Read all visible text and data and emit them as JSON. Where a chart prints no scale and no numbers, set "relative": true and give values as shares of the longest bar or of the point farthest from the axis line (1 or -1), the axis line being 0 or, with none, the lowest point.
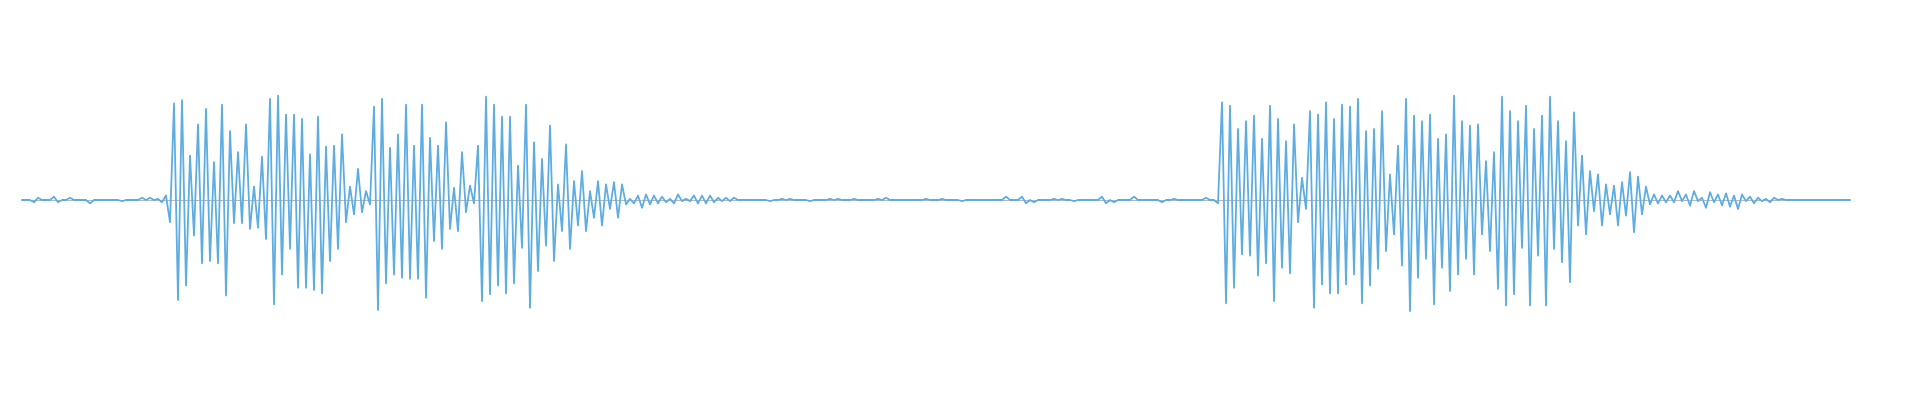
{
  "chart_data": {
    "type": "line",
    "relative": true,
    "marker": "none",
    "color": "#5dade2",
    "categories": [
      null,
      null,
      null,
      null,
      null,
      null,
      null,
      null,
      null,
      null,
      null,
      null,
      null,
      null,
      null,
      null,
      null,
      null,
      null,
      null,
      null,
      null,
      null,
      null,
      null,
      null,
      null,
      null,
      null,
      null,
      null,
      null,
      null,
      null,
      null,
      null,
      null,
      null,
      null,
      null,
      null,
      null,
      null,
      null,
      null,
      null,
      null,
      null,
      null,
      null,
      null,
      null,
      null,
      null,
      null,
      null,
      null,
      null,
      null,
      null,
      null,
      null,
      null,
      null,
      null,
      null,
      null,
      null,
      null,
      null,
      null,
      null,
      null,
      null,
      null,
      null,
      null,
      null,
      null,
      null,
      null,
      null,
      null,
      null,
      null,
      null,
      null,
      null,
      null,
      null,
      null,
      null,
      null,
      null,
      null,
      null,
      null,
      null,
      null,
      null,
      null,
      null,
      null,
      null,
      null,
      null,
      null,
      null,
      null,
      null,
      null,
      null,
      null,
      null,
      null,
      null,
      null,
      null,
      null,
      null,
      null,
      null,
      null,
      null,
      null,
      null,
      null,
      null,
      null,
      null,
      null,
      null,
      null,
      null,
      null,
      null,
      null,
      null,
      null,
      null,
      null,
      null,
      null,
      null,
      null,
      null,
      null,
      null,
      null,
      null,
      null,
      null,
      null,
      null,
      null,
      null,
      null,
      null,
      null,
      null,
      null,
      null,
      null,
      null,
      null,
      null,
      null,
      null,
      null,
      null,
      null,
      null,
      null,
      null,
      null,
      null,
      null,
      null,
      null,
      null,
      null,
      null,
      null,
      null,
      null,
      null,
      null,
      null,
      null,
      null,
      null,
      null,
      null,
      null,
      null,
      null,
      null,
      null,
      null,
      null,
      null,
      null,
      null,
      null,
      null,
      null,
      null,
      null,
      null,
      null,
      null,
      null,
      null,
      null,
      null,
      null,
      null,
      null,
      null,
      null,
      null,
      null,
      null,
      null,
      null,
      null,
      null,
      null,
      null,
      null,
      null,
      null,
      null,
      null,
      null,
      null,
      null,
      null,
      null,
      null,
      null,
      null,
      null,
      null,
      null,
      null,
      null,
      null,
      null,
      null,
      null,
      null,
      null,
      null,
      null,
      null,
      null,
      null,
      null,
      null,
      null,
      null,
      null,
      null,
      null,
      null,
      null,
      null,
      null,
      null,
      null,
      null,
      null,
      null,
      null,
      null,
      null,
      null,
      null,
      null,
      null,
      null,
      null,
      null,
      null,
      null,
      null,
      null,
      null,
      null,
      null,
      null,
      null,
      null,
      null,
      null,
      null,
      null,
      null,
      null,
      null,
      null,
      null,
      null,
      null,
      null,
      null,
      null,
      null,
      null,
      null,
      null,
      null,
      null,
      null,
      null,
      null,
      null,
      null,
      null,
      null,
      null,
      null,
      null,
      null,
      null,
      null,
      null,
      null,
      null,
      null,
      null,
      null,
      null,
      null,
      null,
      null,
      null,
      null,
      null,
      null,
      null,
      null,
      null,
      null,
      null,
      null,
      null,
      null,
      null,
      null,
      null,
      null,
      null,
      null,
      null,
      null,
      null,
      null,
      null,
      null,
      null,
      null,
      null,
      null,
      null,
      null,
      null,
      null,
      null,
      null,
      null,
      null,
      null,
      null,
      null,
      null,
      null,
      null,
      null,
      null,
      null,
      null,
      null,
      null,
      null,
      null,
      null,
      null,
      null,
      null,
      null,
      null,
      null,
      null,
      null,
      null,
      null,
      null,
      null,
      null,
      null,
      null,
      null,
      null,
      null,
      null,
      null,
      null,
      null,
      null,
      null,
      null,
      null,
      null,
      null,
      null,
      null,
      null,
      null,
      null,
      null,
      null,
      null,
      null,
      null,
      null,
      null,
      null,
      null,
      null,
      null,
      null,
      null,
      null,
      null,
      null,
      null,
      null,
      null,
      null,
      null,
      null,
      null,
      null,
      null,
      null,
      null,
      null,
      null,
      null,
      null,
      null,
      null,
      null,
      null,
      null,
      null
    ],
    "values": [
      0,
      0,
      0,
      -0.02,
      0.02,
      0,
      0,
      0,
      0.03,
      -0.02,
      0,
      0,
      0.02,
      0,
      0,
      0,
      0,
      -0.03,
      0,
      0,
      0,
      0,
      0,
      0,
      0,
      -0.01,
      0,
      0,
      0,
      0,
      0.02,
      0,
      0.02,
      0,
      0.01,
      -0.02,
      0.04,
      -0.2,
      0.87,
      -0.9,
      0.9,
      -0.77,
      0.4,
      -0.32,
      0.68,
      -0.57,
      0.82,
      -0.55,
      0.34,
      -0.57,
      0.86,
      -0.86,
      0.62,
      -0.21,
      0.43,
      -0.21,
      0.68,
      -0.26,
      0.12,
      -0.25,
      0.39,
      -0.35,
      0.91,
      -0.94,
      0.94,
      -0.67,
      0.77,
      -0.44,
      0.77,
      -0.79,
      0.73,
      -0.79,
      0.41,
      -0.81,
      0.75,
      -0.84,
      0.48,
      -0.55,
      0.49,
      -0.44,
      0.59,
      -0.2,
      0.12,
      -0.13,
      0.28,
      -0.11,
      0.08,
      -0.04,
      0.84,
      -0.99,
      0.91,
      -0.75,
      0.47,
      -0.67,
      0.59,
      -0.7,
      0.86,
      -0.71,
      0.49,
      -0.71,
      0.86,
      -0.88,
      0.56,
      -0.37,
      0.49,
      -0.44,
      0.7,
      -0.26,
      0.11,
      -0.28,
      0.43,
      -0.11,
      0.13,
      -0.03,
      0.49,
      -0.91,
      0.93,
      -0.85,
      0.86,
      -0.77,
      0.75,
      -0.84,
      0.75,
      -0.75,
      0.31,
      -0.43,
      0.86,
      -0.97,
      0.52,
      -0.64,
      0.37,
      -0.41,
      0.67,
      -0.55,
      0.14,
      -0.28,
      0.5,
      -0.44,
      0.17,
      -0.23,
      0.26,
      -0.28,
      0.08,
      -0.16,
      0.17,
      -0.23,
      0.14,
      -0.08,
      0.16,
      -0.16,
      0.14,
      -0.04,
      0.01,
      -0.03,
      0.04,
      -0.07,
      0.05,
      -0.04,
      0.04,
      -0.03,
      0.03,
      -0.02,
      0.01,
      -0.03,
      0.05,
      -0.01,
      0.01,
      -0.01,
      0.04,
      -0.03,
      0.04,
      -0.03,
      0.04,
      -0.02,
      0.02,
      -0.01,
      0.02,
      -0.01,
      0.02,
      0,
      0,
      0,
      0,
      0,
      0,
      0,
      0,
      -0.01,
      0,
      0,
      0.01,
      0,
      0.01,
      0,
      0,
      0,
      0,
      -0.01,
      0,
      0,
      0,
      0,
      0.01,
      0,
      0.01,
      0,
      0,
      0,
      0.01,
      0,
      0,
      0,
      0,
      0,
      0.01,
      0,
      0.02,
      0,
      0,
      0,
      0,
      0,
      0,
      0,
      0,
      0,
      0.01,
      0,
      0,
      0,
      0.01,
      0,
      0,
      0,
      0,
      -0.01,
      0,
      0,
      0,
      0,
      0,
      0,
      0,
      0,
      0,
      0,
      0.03,
      0,
      0,
      0,
      0.03,
      -0.03,
      0,
      -0.02,
      0,
      0,
      0,
      0,
      0.01,
      0,
      0.01,
      0,
      0,
      -0.01,
      0,
      0,
      0,
      0,
      0,
      0,
      0.03,
      -0.03,
      0,
      -0.02,
      0,
      0,
      0,
      0,
      0.03,
      0,
      0,
      0,
      0,
      0,
      0,
      -0.02,
      0,
      0,
      0.01,
      0,
      0,
      0,
      0,
      0,
      0,
      0,
      0.02,
      0,
      0,
      -0.03,
      0.88,
      -0.93,
      0.85,
      -0.79,
      0.64,
      -0.49,
      0.71,
      -0.5,
      0.76,
      -0.68,
      0.55,
      -0.57,
      0.85,
      -0.91,
      0.73,
      -0.61,
      0.53,
      -0.66,
      0.68,
      -0.2,
      0.2,
      -0.08,
      0.8,
      -0.97,
      0.77,
      -0.76,
      0.88,
      -0.84,
      0.73,
      -0.84,
      0.86,
      -0.76,
      0.84,
      -0.67,
      0.91,
      -0.93,
      0.62,
      -0.77,
      0.64,
      -0.62,
      0.8,
      -0.46,
      0.23,
      -0.31,
      0.49,
      -0.59,
      0.91,
      -1,
      0.76,
      -0.7,
      0.71,
      -0.53,
      0.77,
      -0.94,
      0.55,
      -0.61,
      0.59,
      -0.82,
      0.94,
      -0.67,
      0.71,
      -0.53,
      0.67,
      -0.67,
      0.68,
      -0.31,
      0.35,
      -0.46,
      0.43,
      -0.8,
      0.93,
      -0.95,
      0.8,
      -0.85,
      0.71,
      -0.43,
      0.85,
      -0.95,
      0.64,
      -0.5,
      0.76,
      -0.95,
      0.93,
      -0.44,
      0.71,
      -0.56,
      0.53,
      -0.74,
      0.79,
      -0.23,
      0.4,
      -0.31,
      0.26,
      -0.1,
      0.23,
      -0.23,
      0.14,
      -0.13,
      0.13,
      -0.23,
      0.16,
      -0.14,
      0.25,
      -0.29,
      0.21,
      -0.13,
      0.12,
      -0.04,
      0.05,
      -0.03,
      0.04,
      -0.02,
      0.04,
      -0.02,
      0.08,
      -0.01,
      0.05,
      -0.05,
      0.08,
      -0.01,
      0.02,
      -0.07,
      0.07,
      -0.02,
      0.05,
      -0.05,
      0.06,
      -0.06,
      0.04,
      -0.08,
      0.05,
      -0.01,
      0.03,
      -0.03,
      0.02,
      -0.01,
      0.01,
      -0.02,
      0.02,
      0,
      0.01,
      0,
      0,
      0,
      0,
      0,
      0,
      0,
      0,
      0,
      0,
      0,
      0,
      0,
      0,
      0,
      0,
      0
    ]
  }
}
